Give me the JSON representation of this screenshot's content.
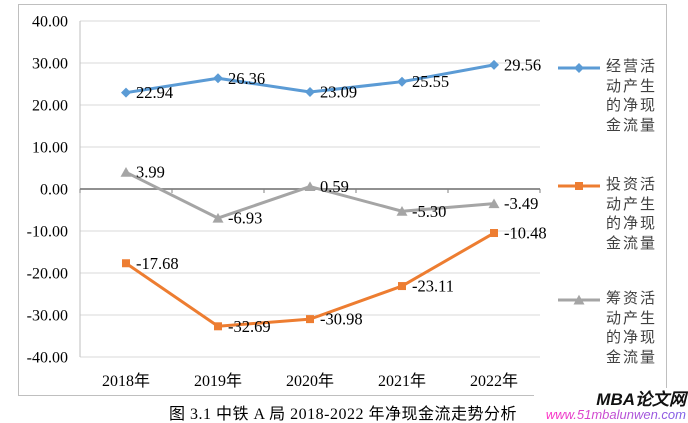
{
  "chart_data": {
    "type": "line",
    "caption": "图 3.1 中铁 A 局 2018-2022 年净现金流走势分析",
    "categories": [
      "2018年",
      "2019年",
      "2020年",
      "2021年",
      "2022年"
    ],
    "series": [
      {
        "name": "经营活动产生的净现金流量",
        "color": "#5B9BD5",
        "marker": "diamond",
        "values": [
          22.94,
          26.36,
          23.09,
          25.55,
          29.56
        ],
        "labels": [
          "22.94",
          "26.36",
          "23.09",
          "25.55",
          "29.56"
        ]
      },
      {
        "name": "投资活动产生的净现金流量",
        "color": "#ED7D31",
        "marker": "square",
        "values": [
          -17.68,
          -32.69,
          -30.98,
          -23.11,
          -10.48
        ],
        "labels": [
          "-17.68",
          "-32.69",
          "-30.98",
          "-23.11",
          "-10.48"
        ]
      },
      {
        "name": "筹资活动产生的净现金流量",
        "color": "#A5A5A5",
        "marker": "triangle",
        "values": [
          3.99,
          -6.93,
          0.59,
          -5.3,
          -3.49
        ],
        "labels": [
          "3.99",
          "-6.93",
          "0.59",
          "-5.30",
          "-3.49"
        ]
      }
    ],
    "y_axis": {
      "min": -40,
      "max": 40,
      "step": 10,
      "tick_labels": [
        "40.00",
        "30.00",
        "20.00",
        "10.00",
        "0.00",
        "-10.00",
        "-20.00",
        "-30.00",
        "-40.00"
      ]
    },
    "grid": true,
    "grid_color": "#D9D9D9",
    "zero_line_color": "#808080",
    "axis_line_color": "#BFBFBF",
    "legend_position": "right",
    "data_labels": true
  },
  "watermark": {
    "brand": "MBA论文网",
    "url": "www.51mbalunwen.com",
    "gradient_colors": [
      "#ff2fc4",
      "#7b5fe8"
    ]
  }
}
